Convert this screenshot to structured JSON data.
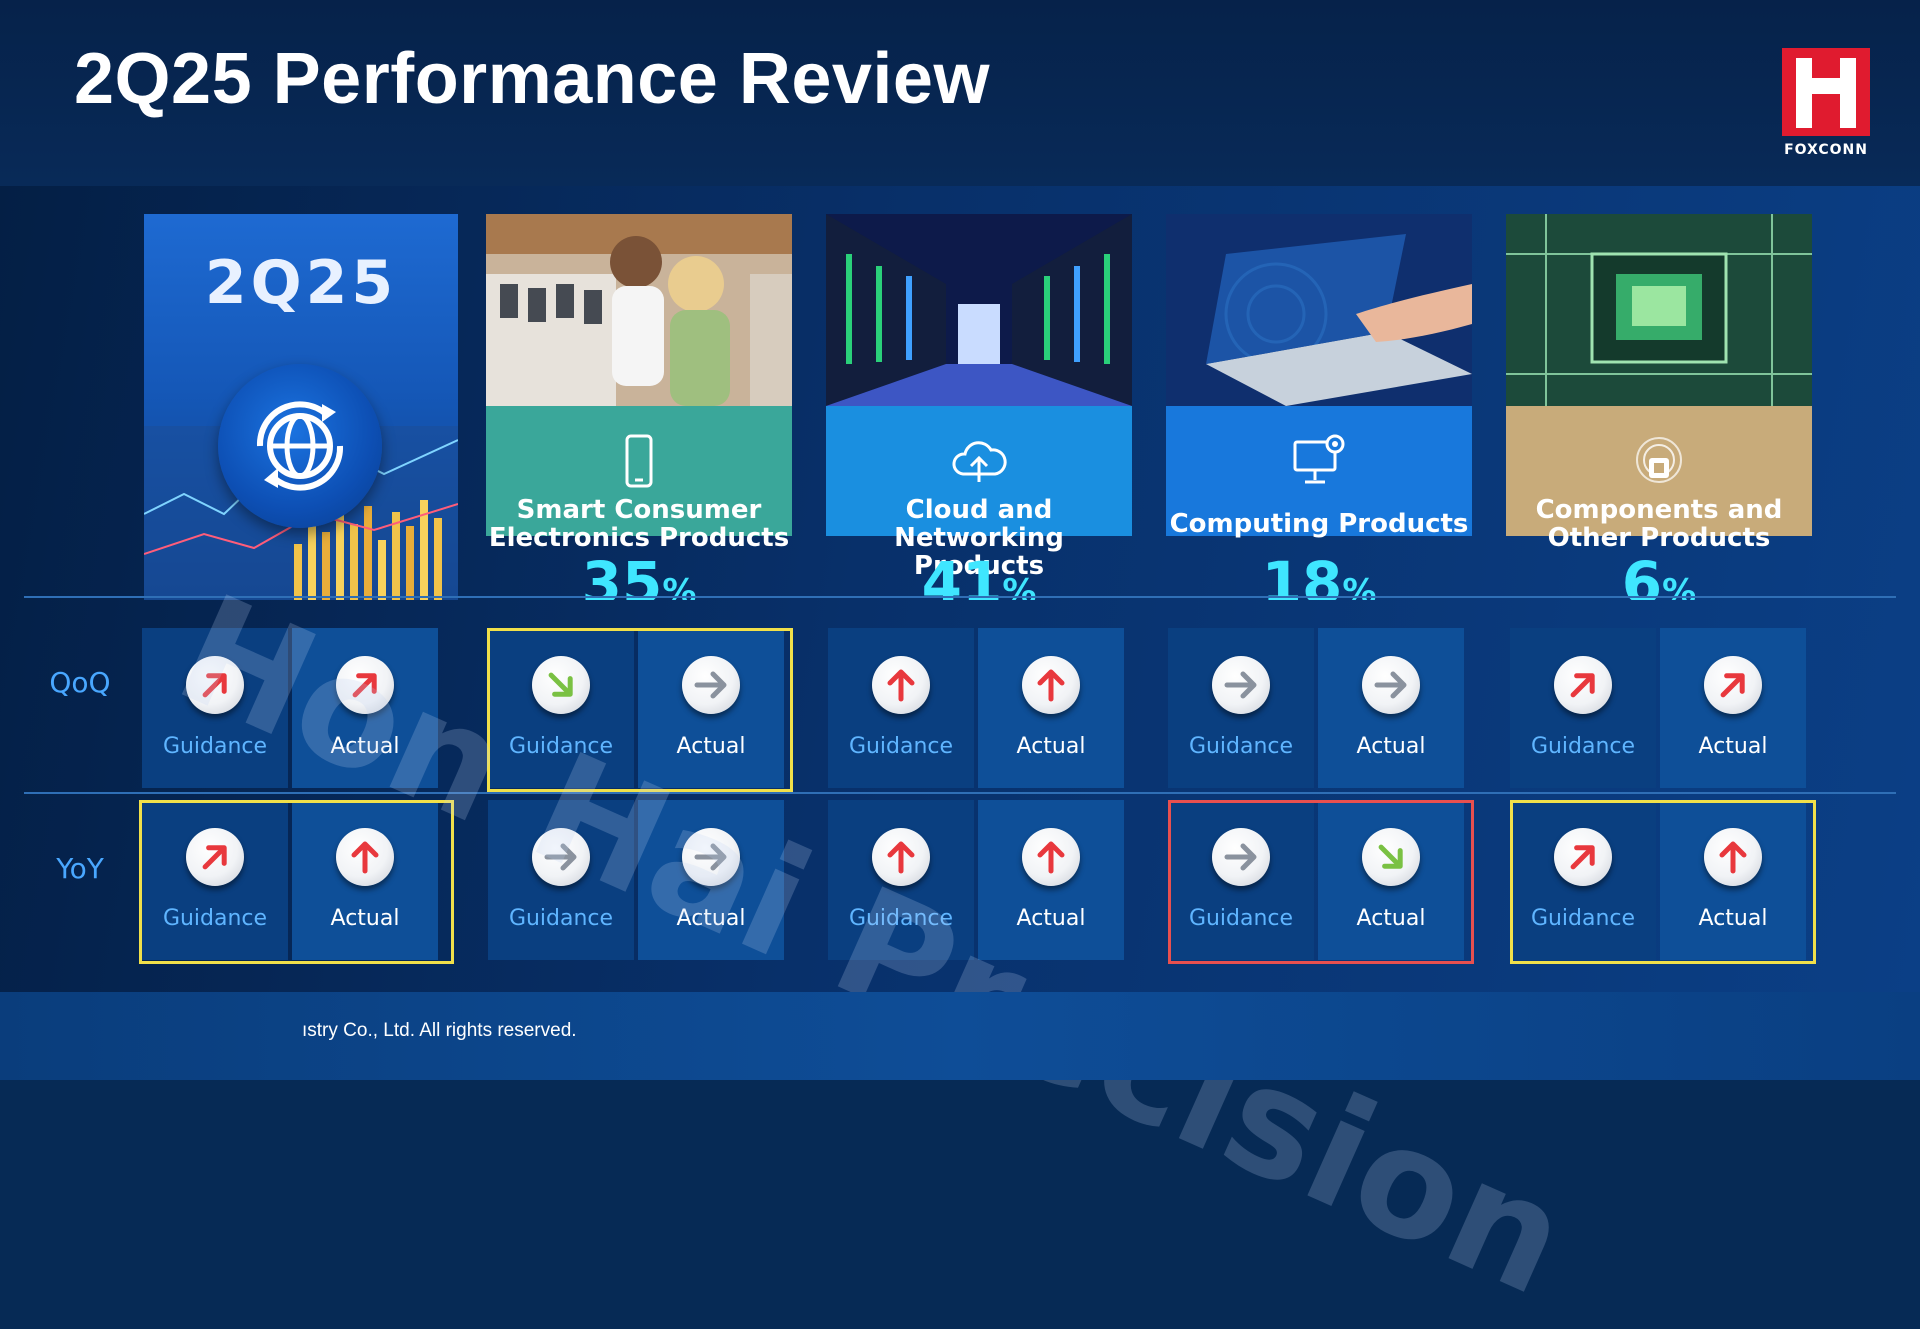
{
  "title": "2Q25 Performance Review",
  "logo": {
    "word": "FOXCONN",
    "color": "#e01b2f"
  },
  "watermark": "Hon Hai Precision",
  "summary": {
    "label": "2Q25",
    "icon": "globe-refresh-icon"
  },
  "categories": [
    {
      "name_line1": "Smart Consumer",
      "name_line2": "Electronics Products",
      "percent": "35",
      "percent_symbol": "%",
      "icon": "smartphone-icon",
      "band_color": "#3aa79a"
    },
    {
      "name_line1": "Cloud and",
      "name_line2": "Networking Products",
      "percent": "41",
      "percent_symbol": "%",
      "icon": "cloud-upload-icon",
      "band_color": "#1a8fe0"
    },
    {
      "name_line1": "Computing Products",
      "name_line2": "",
      "percent": "18",
      "percent_symbol": "%",
      "icon": "monitor-gear-icon",
      "band_color": "#1878dc"
    },
    {
      "name_line1": "Components and",
      "name_line2": "Other Products",
      "percent": "6",
      "percent_symbol": "%",
      "icon": "chip-icon",
      "band_color": "#c8ab7a"
    }
  ],
  "rows": {
    "qoq_label": "QoQ",
    "yoy_label": "YoY",
    "guidance_label": "Guidance",
    "actual_label": "Actual"
  },
  "indicators": {
    "legend": {
      "up": "#e8383d",
      "up_right": "#e8383d",
      "flat": "#8a929e",
      "down_right": "#7ac143"
    },
    "qoq": [
      {
        "guidance": "up_right",
        "actual": "up_right"
      },
      {
        "guidance": "down_right",
        "actual": "flat"
      },
      {
        "guidance": "up",
        "actual": "up"
      },
      {
        "guidance": "flat",
        "actual": "flat"
      },
      {
        "guidance": "up_right",
        "actual": "up_right"
      }
    ],
    "yoy": [
      {
        "guidance": "up_right",
        "actual": "up"
      },
      {
        "guidance": "flat",
        "actual": "flat"
      },
      {
        "guidance": "up",
        "actual": "up"
      },
      {
        "guidance": "flat",
        "actual": "down_right"
      },
      {
        "guidance": "up_right",
        "actual": "up"
      }
    ]
  },
  "highlights": {
    "yellow": "#f1e04a",
    "red": "#e8504f"
  },
  "footer": "ıstry Co., Ltd. All rights reserved."
}
